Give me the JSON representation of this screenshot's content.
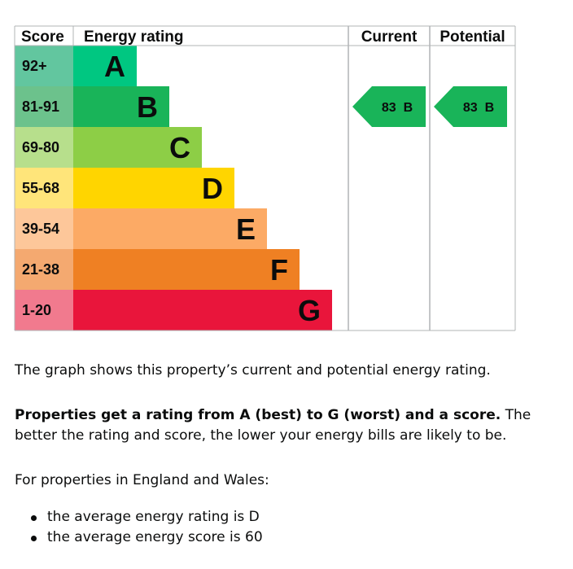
{
  "chart_data": {
    "type": "bar",
    "headers": {
      "score": "Score",
      "rating": "Energy rating",
      "current": "Current",
      "potential": "Potential"
    },
    "bands": [
      {
        "range": "92+",
        "letter": "A",
        "color": "#00c781",
        "score_color": "#62c69f"
      },
      {
        "range": "81-91",
        "letter": "B",
        "color": "#19b459",
        "score_color": "#6cc28c"
      },
      {
        "range": "69-80",
        "letter": "C",
        "color": "#8dce46",
        "score_color": "#b7df8c"
      },
      {
        "range": "55-68",
        "letter": "D",
        "color": "#ffd500",
        "score_color": "#ffe57a"
      },
      {
        "range": "39-54",
        "letter": "E",
        "color": "#fcaa65",
        "score_color": "#fdc79a"
      },
      {
        "range": "21-38",
        "letter": "F",
        "color": "#ef8023",
        "score_color": "#f4a970"
      },
      {
        "range": "1-20",
        "letter": "G",
        "color": "#e9153b",
        "score_color": "#f17a8e"
      }
    ],
    "current": {
      "score": 83,
      "letter": "B",
      "label": "83 B",
      "color": "#19b459"
    },
    "potential": {
      "score": 83,
      "letter": "B",
      "label": "83 B",
      "color": "#19b459"
    }
  },
  "text": {
    "intro": "The graph shows this property’s current and potential energy rating.",
    "rating_bold": "Properties get a rating from A (best) to G (worst) and a score.",
    "rating_rest": " The better the rating and score, the lower your energy bills are likely to be.",
    "region": "For properties in England and Wales:",
    "bullets": [
      "the average energy rating is D",
      "the average energy score is 60"
    ]
  }
}
